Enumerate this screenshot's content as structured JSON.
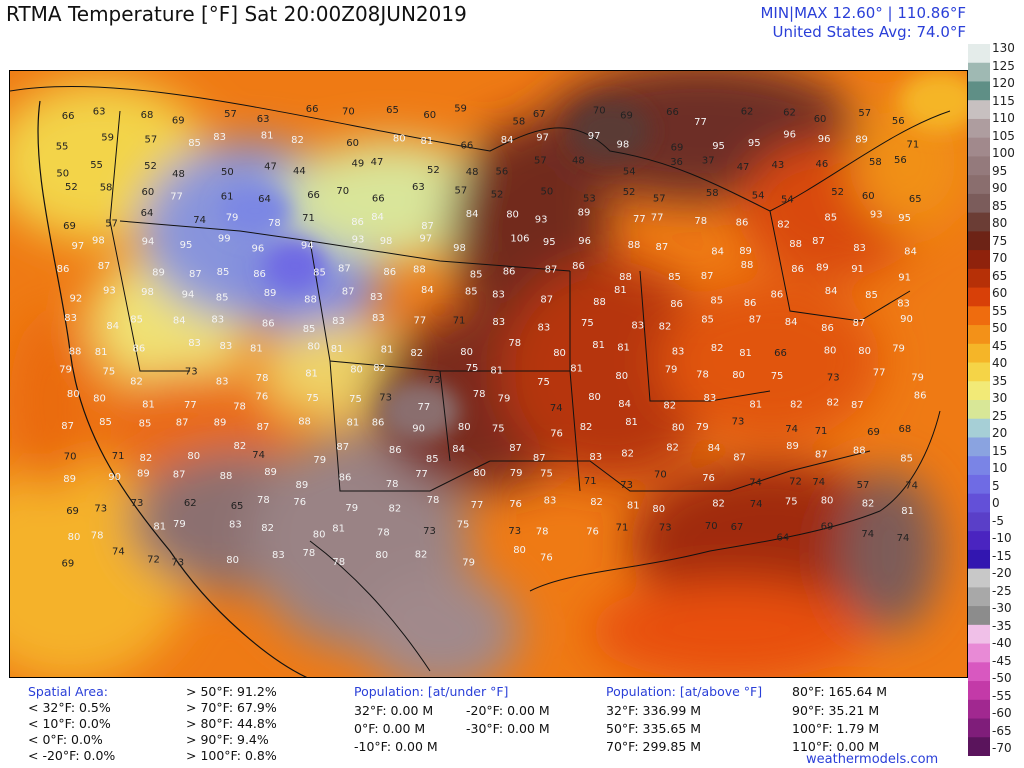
{
  "header": {
    "title": "RTMA Temperature [°F]  Sat 20:00Z08JUN2019",
    "minmax": "MIN|MAX 12.60°  |  110.86°F",
    "average": "United States Avg: 74.0°F"
  },
  "colorbar": {
    "unit": "°F",
    "ticks": [
      "130",
      "125",
      "120",
      "115",
      "110",
      "105",
      "100",
      "95",
      "90",
      "85",
      "80",
      "75",
      "70",
      "65",
      "60",
      "55",
      "50",
      "45",
      "40",
      "35",
      "30",
      "25",
      "20",
      "15",
      "10",
      "5",
      "0",
      "-5",
      "-10",
      "-15",
      "-20",
      "-25",
      "-30",
      "-35",
      "-40",
      "-45",
      "-50",
      "-55",
      "-60",
      "-65",
      "-70"
    ],
    "colors": [
      "#e4ecea",
      "#9fb9b3",
      "#5f8f86",
      "#c7c0c0",
      "#ae9d9f",
      "#a1898c",
      "#947a7c",
      "#8a6e6e",
      "#7b5c5b",
      "#6b3d35",
      "#6d2316",
      "#8f220c",
      "#b63007",
      "#d84008",
      "#ef6c0e",
      "#f39118",
      "#f5b528",
      "#f5d447",
      "#f2ea77",
      "#d8e797",
      "#a6cfd6",
      "#8aa3e0",
      "#7a84e6",
      "#6f6be4",
      "#6350d8",
      "#5a3fc8",
      "#4a24c0",
      "#3216b0",
      "#c8c8c8",
      "#a8a8a8",
      "#8c8c8c",
      "#f0c0e8",
      "#e88ad6",
      "#d858c0",
      "#c33aa8",
      "#a12890",
      "#7f1d7a",
      "#5a145c"
    ]
  },
  "stations": [
    {
      "t": "66"
    },
    {
      "t": "63"
    },
    {
      "t": "68"
    },
    {
      "t": "69"
    },
    {
      "t": "57"
    },
    {
      "t": "63"
    },
    {
      "t": "66"
    },
    {
      "t": "70"
    },
    {
      "t": "65"
    },
    {
      "t": "60"
    },
    {
      "t": "59"
    },
    {
      "t": "58"
    },
    {
      "t": "67"
    },
    {
      "t": "70"
    },
    {
      "t": "69"
    },
    {
      "t": "66"
    },
    {
      "t": "77"
    },
    {
      "t": "62"
    },
    {
      "t": "62"
    },
    {
      "t": "60"
    },
    {
      "t": "57"
    },
    {
      "t": "56"
    },
    {
      "t": "55"
    },
    {
      "t": "59"
    },
    {
      "t": "57"
    },
    {
      "t": "85"
    },
    {
      "t": "83"
    },
    {
      "t": "81"
    },
    {
      "t": "82"
    },
    {
      "t": "60"
    },
    {
      "t": "80"
    },
    {
      "t": "81"
    },
    {
      "t": "66"
    },
    {
      "t": "84"
    },
    {
      "t": "97"
    },
    {
      "t": "97"
    },
    {
      "t": "98"
    },
    {
      "t": "69"
    },
    {
      "t": "95"
    },
    {
      "t": "95"
    },
    {
      "t": "96"
    },
    {
      "t": "96"
    },
    {
      "t": "89"
    },
    {
      "t": "71"
    },
    {
      "t": "50"
    },
    {
      "t": "55"
    },
    {
      "t": "52"
    },
    {
      "t": "48"
    },
    {
      "t": "50"
    },
    {
      "t": "47"
    },
    {
      "t": "44"
    },
    {
      "t": "49"
    },
    {
      "t": "47"
    },
    {
      "t": "52"
    },
    {
      "t": "48"
    },
    {
      "t": "56"
    },
    {
      "t": "57"
    },
    {
      "t": "48"
    },
    {
      "t": "54"
    },
    {
      "t": "36"
    },
    {
      "t": "37"
    },
    {
      "t": "47"
    },
    {
      "t": "43"
    },
    {
      "t": "46"
    },
    {
      "t": "58"
    },
    {
      "t": "56"
    },
    {
      "t": "52"
    },
    {
      "t": "58"
    },
    {
      "t": "60"
    },
    {
      "t": "77"
    },
    {
      "t": "61"
    },
    {
      "t": "64"
    },
    {
      "t": "66"
    },
    {
      "t": "70"
    },
    {
      "t": "66"
    },
    {
      "t": "63"
    },
    {
      "t": "57"
    },
    {
      "t": "52"
    },
    {
      "t": "50"
    },
    {
      "t": "53"
    },
    {
      "t": "52"
    },
    {
      "t": "57"
    },
    {
      "t": "58"
    },
    {
      "t": "54"
    },
    {
      "t": "54"
    },
    {
      "t": "52"
    },
    {
      "t": "60"
    },
    {
      "t": "65"
    },
    {
      "t": "69"
    },
    {
      "t": "57"
    },
    {
      "t": "64"
    },
    {
      "t": "74"
    },
    {
      "t": "79"
    },
    {
      "t": "78"
    },
    {
      "t": "71"
    },
    {
      "t": "86"
    },
    {
      "t": "84"
    },
    {
      "t": "87"
    },
    {
      "t": "84"
    },
    {
      "t": "80"
    },
    {
      "t": "93"
    },
    {
      "t": "89"
    },
    {
      "t": "77"
    },
    {
      "t": "77"
    },
    {
      "t": "78"
    },
    {
      "t": "86"
    },
    {
      "t": "82"
    },
    {
      "t": "85"
    },
    {
      "t": "93"
    },
    {
      "t": "95"
    },
    {
      "t": "97"
    },
    {
      "t": "98"
    },
    {
      "t": "94"
    },
    {
      "t": "95"
    },
    {
      "t": "99"
    },
    {
      "t": "96"
    },
    {
      "t": "94"
    },
    {
      "t": "93"
    },
    {
      "t": "98"
    },
    {
      "t": "97"
    },
    {
      "t": "98"
    },
    {
      "t": "106"
    },
    {
      "t": "95"
    },
    {
      "t": "96"
    },
    {
      "t": "88"
    },
    {
      "t": "87"
    },
    {
      "t": "84"
    },
    {
      "t": "89"
    },
    {
      "t": "88"
    },
    {
      "t": "87"
    },
    {
      "t": "83"
    },
    {
      "t": "84"
    },
    {
      "t": "86"
    },
    {
      "t": "87"
    },
    {
      "t": "89"
    },
    {
      "t": "87"
    },
    {
      "t": "85"
    },
    {
      "t": "86"
    },
    {
      "t": "85"
    },
    {
      "t": "87"
    },
    {
      "t": "86"
    },
    {
      "t": "88"
    },
    {
      "t": "85"
    },
    {
      "t": "86"
    },
    {
      "t": "87"
    },
    {
      "t": "86"
    },
    {
      "t": "88"
    },
    {
      "t": "85"
    },
    {
      "t": "87"
    },
    {
      "t": "88"
    },
    {
      "t": "86"
    },
    {
      "t": "89"
    },
    {
      "t": "91"
    },
    {
      "t": "91"
    },
    {
      "t": "92"
    },
    {
      "t": "93"
    },
    {
      "t": "98"
    },
    {
      "t": "94"
    },
    {
      "t": "85"
    },
    {
      "t": "89"
    },
    {
      "t": "88"
    },
    {
      "t": "87"
    },
    {
      "t": "83"
    },
    {
      "t": "84"
    },
    {
      "t": "85"
    },
    {
      "t": "83"
    },
    {
      "t": "87"
    },
    {
      "t": "88"
    },
    {
      "t": "81"
    },
    {
      "t": "86"
    },
    {
      "t": "85"
    },
    {
      "t": "86"
    },
    {
      "t": "86"
    },
    {
      "t": "84"
    },
    {
      "t": "85"
    },
    {
      "t": "83"
    },
    {
      "t": "83"
    },
    {
      "t": "84"
    },
    {
      "t": "85"
    },
    {
      "t": "84"
    },
    {
      "t": "83"
    },
    {
      "t": "86"
    },
    {
      "t": "85"
    },
    {
      "t": "83"
    },
    {
      "t": "83"
    },
    {
      "t": "77"
    },
    {
      "t": "71"
    },
    {
      "t": "83"
    },
    {
      "t": "83"
    },
    {
      "t": "75"
    },
    {
      "t": "83"
    },
    {
      "t": "82"
    },
    {
      "t": "85"
    },
    {
      "t": "87"
    },
    {
      "t": "84"
    },
    {
      "t": "86"
    },
    {
      "t": "87"
    },
    {
      "t": "90"
    },
    {
      "t": "88"
    },
    {
      "t": "81"
    },
    {
      "t": "86"
    },
    {
      "t": "83"
    },
    {
      "t": "83"
    },
    {
      "t": "81"
    },
    {
      "t": "80"
    },
    {
      "t": "81"
    },
    {
      "t": "81"
    },
    {
      "t": "82"
    },
    {
      "t": "80"
    },
    {
      "t": "78"
    },
    {
      "t": "80"
    },
    {
      "t": "81"
    },
    {
      "t": "81"
    },
    {
      "t": "83"
    },
    {
      "t": "82"
    },
    {
      "t": "81"
    },
    {
      "t": "66"
    },
    {
      "t": "80"
    },
    {
      "t": "80"
    },
    {
      "t": "79"
    },
    {
      "t": "79"
    },
    {
      "t": "75"
    },
    {
      "t": "82"
    },
    {
      "t": "73"
    },
    {
      "t": "83"
    },
    {
      "t": "78"
    },
    {
      "t": "81"
    },
    {
      "t": "80"
    },
    {
      "t": "82"
    },
    {
      "t": "73"
    },
    {
      "t": "75"
    },
    {
      "t": "81"
    },
    {
      "t": "75"
    },
    {
      "t": "81"
    },
    {
      "t": "80"
    },
    {
      "t": "79"
    },
    {
      "t": "78"
    },
    {
      "t": "80"
    },
    {
      "t": "75"
    },
    {
      "t": "73"
    },
    {
      "t": "77"
    },
    {
      "t": "79"
    },
    {
      "t": "80"
    },
    {
      "t": "80"
    },
    {
      "t": "81"
    },
    {
      "t": "77"
    },
    {
      "t": "78"
    },
    {
      "t": "76"
    },
    {
      "t": "75"
    },
    {
      "t": "75"
    },
    {
      "t": "73"
    },
    {
      "t": "77"
    },
    {
      "t": "78"
    },
    {
      "t": "79"
    },
    {
      "t": "74"
    },
    {
      "t": "80"
    },
    {
      "t": "84"
    },
    {
      "t": "82"
    },
    {
      "t": "83"
    },
    {
      "t": "81"
    },
    {
      "t": "82"
    },
    {
      "t": "82"
    },
    {
      "t": "87"
    },
    {
      "t": "86"
    },
    {
      "t": "87"
    },
    {
      "t": "85"
    },
    {
      "t": "85"
    },
    {
      "t": "87"
    },
    {
      "t": "89"
    },
    {
      "t": "87"
    },
    {
      "t": "88"
    },
    {
      "t": "81"
    },
    {
      "t": "86"
    },
    {
      "t": "90"
    },
    {
      "t": "80"
    },
    {
      "t": "75"
    },
    {
      "t": "76"
    },
    {
      "t": "82"
    },
    {
      "t": "81"
    },
    {
      "t": "80"
    },
    {
      "t": "79"
    },
    {
      "t": "73"
    },
    {
      "t": "74"
    },
    {
      "t": "71"
    },
    {
      "t": "69"
    },
    {
      "t": "68"
    },
    {
      "t": "70"
    },
    {
      "t": "71"
    },
    {
      "t": "82"
    },
    {
      "t": "80"
    },
    {
      "t": "82"
    },
    {
      "t": "74"
    },
    {
      "t": "79"
    },
    {
      "t": "87"
    },
    {
      "t": "86"
    },
    {
      "t": "85"
    },
    {
      "t": "84"
    },
    {
      "t": "87"
    },
    {
      "t": "87"
    },
    {
      "t": "83"
    },
    {
      "t": "82"
    },
    {
      "t": "82"
    },
    {
      "t": "84"
    },
    {
      "t": "87"
    },
    {
      "t": "89"
    },
    {
      "t": "87"
    },
    {
      "t": "88"
    },
    {
      "t": "85"
    },
    {
      "t": "89"
    },
    {
      "t": "90"
    },
    {
      "t": "89"
    },
    {
      "t": "87"
    },
    {
      "t": "88"
    },
    {
      "t": "89"
    },
    {
      "t": "89"
    },
    {
      "t": "86"
    },
    {
      "t": "78"
    },
    {
      "t": "77"
    },
    {
      "t": "80"
    },
    {
      "t": "79"
    },
    {
      "t": "75"
    },
    {
      "t": "71"
    },
    {
      "t": "73"
    },
    {
      "t": "70"
    },
    {
      "t": "76"
    },
    {
      "t": "74"
    },
    {
      "t": "72"
    },
    {
      "t": "74"
    },
    {
      "t": "57"
    },
    {
      "t": "74"
    },
    {
      "t": "69"
    },
    {
      "t": "73"
    },
    {
      "t": "73"
    },
    {
      "t": "62"
    },
    {
      "t": "65"
    },
    {
      "t": "78"
    },
    {
      "t": "76"
    },
    {
      "t": "79"
    },
    {
      "t": "82"
    },
    {
      "t": "78"
    },
    {
      "t": "77"
    },
    {
      "t": "76"
    },
    {
      "t": "83"
    },
    {
      "t": "82"
    },
    {
      "t": "81"
    },
    {
      "t": "80"
    },
    {
      "t": "82"
    },
    {
      "t": "74"
    },
    {
      "t": "75"
    },
    {
      "t": "80"
    },
    {
      "t": "82"
    },
    {
      "t": "81"
    },
    {
      "t": "80"
    },
    {
      "t": "78"
    },
    {
      "t": "81"
    },
    {
      "t": "79"
    },
    {
      "t": "83"
    },
    {
      "t": "82"
    },
    {
      "t": "80"
    },
    {
      "t": "81"
    },
    {
      "t": "78"
    },
    {
      "t": "73"
    },
    {
      "t": "75"
    },
    {
      "t": "73"
    },
    {
      "t": "78"
    },
    {
      "t": "76"
    },
    {
      "t": "71"
    },
    {
      "t": "73"
    },
    {
      "t": "70"
    },
    {
      "t": "67"
    },
    {
      "t": "64"
    },
    {
      "t": "69"
    },
    {
      "t": "74"
    },
    {
      "t": "74"
    },
    {
      "t": "69"
    },
    {
      "t": "74"
    },
    {
      "t": "72"
    },
    {
      "t": "73"
    },
    {
      "t": "80"
    },
    {
      "t": "83"
    },
    {
      "t": "78"
    },
    {
      "t": "78"
    },
    {
      "t": "80"
    },
    {
      "t": "82"
    },
    {
      "t": "79"
    },
    {
      "t": "80"
    },
    {
      "t": "76"
    }
  ],
  "stats": {
    "spatial": {
      "title": "Spatial Area:",
      "lines_left": [
        "< 32°F: 0.5%",
        "< 10°F: 0.0%",
        "< 0°F: 0.0%",
        "< -20°F: 0.0%"
      ],
      "lines_right": [
        "> 50°F: 91.2%",
        "> 70°F: 67.9%",
        "> 80°F: 44.8%",
        "> 90°F: 9.4%",
        "> 100°F: 0.8%"
      ]
    },
    "pop_under": {
      "title": "Population: [at/under °F]",
      "col1": [
        "32°F: 0.00 M",
        "0°F: 0.00 M",
        "-10°F: 0.00 M"
      ],
      "col2": [
        "-20°F: 0.00 M",
        "-30°F: 0.00 M"
      ]
    },
    "pop_above": {
      "title": "Population: [at/above °F]",
      "col1": [
        "32°F: 336.99 M",
        "50°F: 335.65 M",
        "70°F: 299.85 M"
      ],
      "col2": [
        "80°F: 165.64 M",
        "90°F: 35.21 M",
        "100°F: 1.79 M",
        "110°F: 0.00 M"
      ]
    },
    "credit": "weathermodels.com"
  }
}
